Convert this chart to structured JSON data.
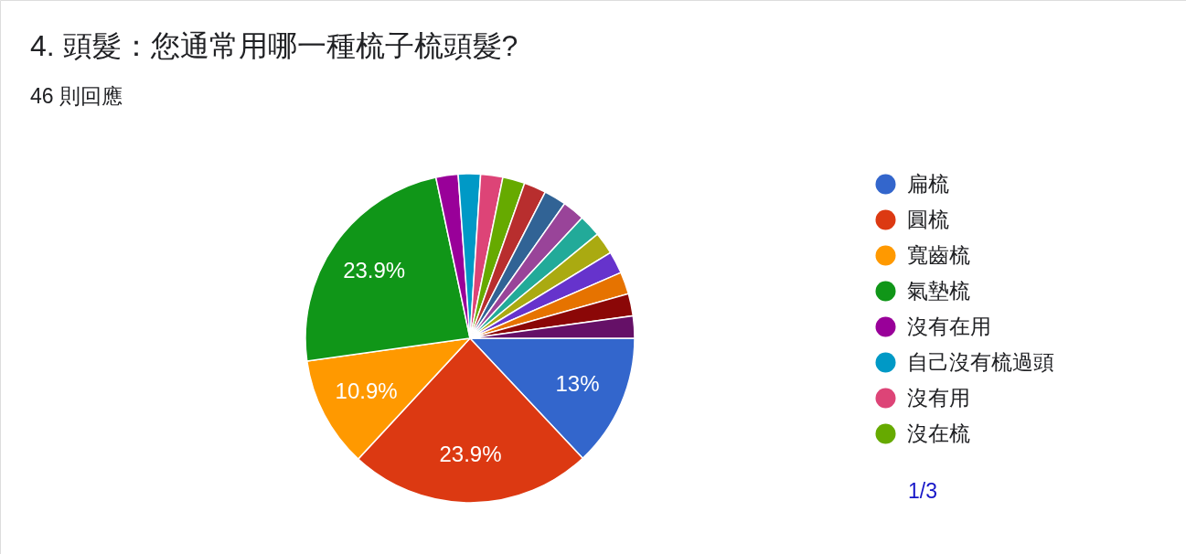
{
  "chart_data": {
    "type": "pie",
    "title": "4. 頭髮：您通常用哪一種梳子梳頭髮?",
    "subtitle": "46 則回應",
    "categories": [
      "扁梳",
      "圓梳",
      "寬齒梳",
      "氣墊梳",
      "沒有在用",
      "自己沒有梳過頭",
      "沒有用",
      "沒在梳",
      null,
      null,
      null,
      null,
      null,
      null,
      null,
      null,
      null
    ],
    "values": [
      13,
      23.9,
      10.9,
      23.9,
      2.18,
      2.18,
      2.18,
      2.18,
      2.18,
      2.18,
      2.18,
      2.18,
      2.18,
      2.18,
      2.18,
      2.18,
      2.18
    ],
    "colors": [
      "#3366cc",
      "#dc3912",
      "#ff9900",
      "#109618",
      "#990099",
      "#0099c6",
      "#dd4477",
      "#66aa00",
      "#b82e2e",
      "#316395",
      "#994499",
      "#22aa99",
      "#aaaa11",
      "#6633cc",
      "#e67300",
      "#8b0707",
      "#651067"
    ],
    "value_labels": [
      "13%",
      "23.9%",
      "10.9%",
      "23.9%",
      null,
      null,
      null,
      null,
      null,
      null,
      null,
      null,
      null,
      null,
      null,
      null,
      null
    ],
    "legend": "right",
    "annotations": [
      "1/3"
    ]
  }
}
